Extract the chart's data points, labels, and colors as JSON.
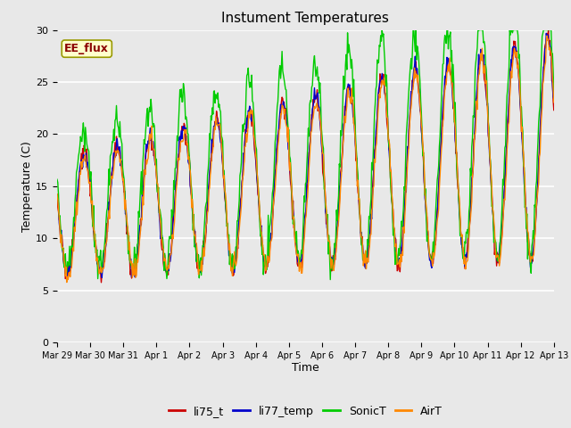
{
  "title": "Instument Temperatures",
  "xlabel": "Time",
  "ylabel": "Temperature (C)",
  "ylim": [
    0,
    30
  ],
  "annotation": "EE_flux",
  "series": [
    "li75_t",
    "li77_temp",
    "SonicT",
    "AirT"
  ],
  "colors": [
    "#cc0000",
    "#0000cc",
    "#00cc00",
    "#ff8800"
  ],
  "background_color": "#e8e8e8",
  "plot_bg_color": "#e8e8e8",
  "tick_labels": [
    "Mar 29",
    "Mar 30",
    "Mar 31",
    "Apr 1",
    "Apr 2",
    "Apr 3",
    "Apr 4",
    "Apr 5",
    "Apr 6",
    "Apr 7",
    "Apr 8",
    "Apr 9",
    "Apr 10",
    "Apr 11",
    "Apr 12",
    "Apr 13"
  ]
}
